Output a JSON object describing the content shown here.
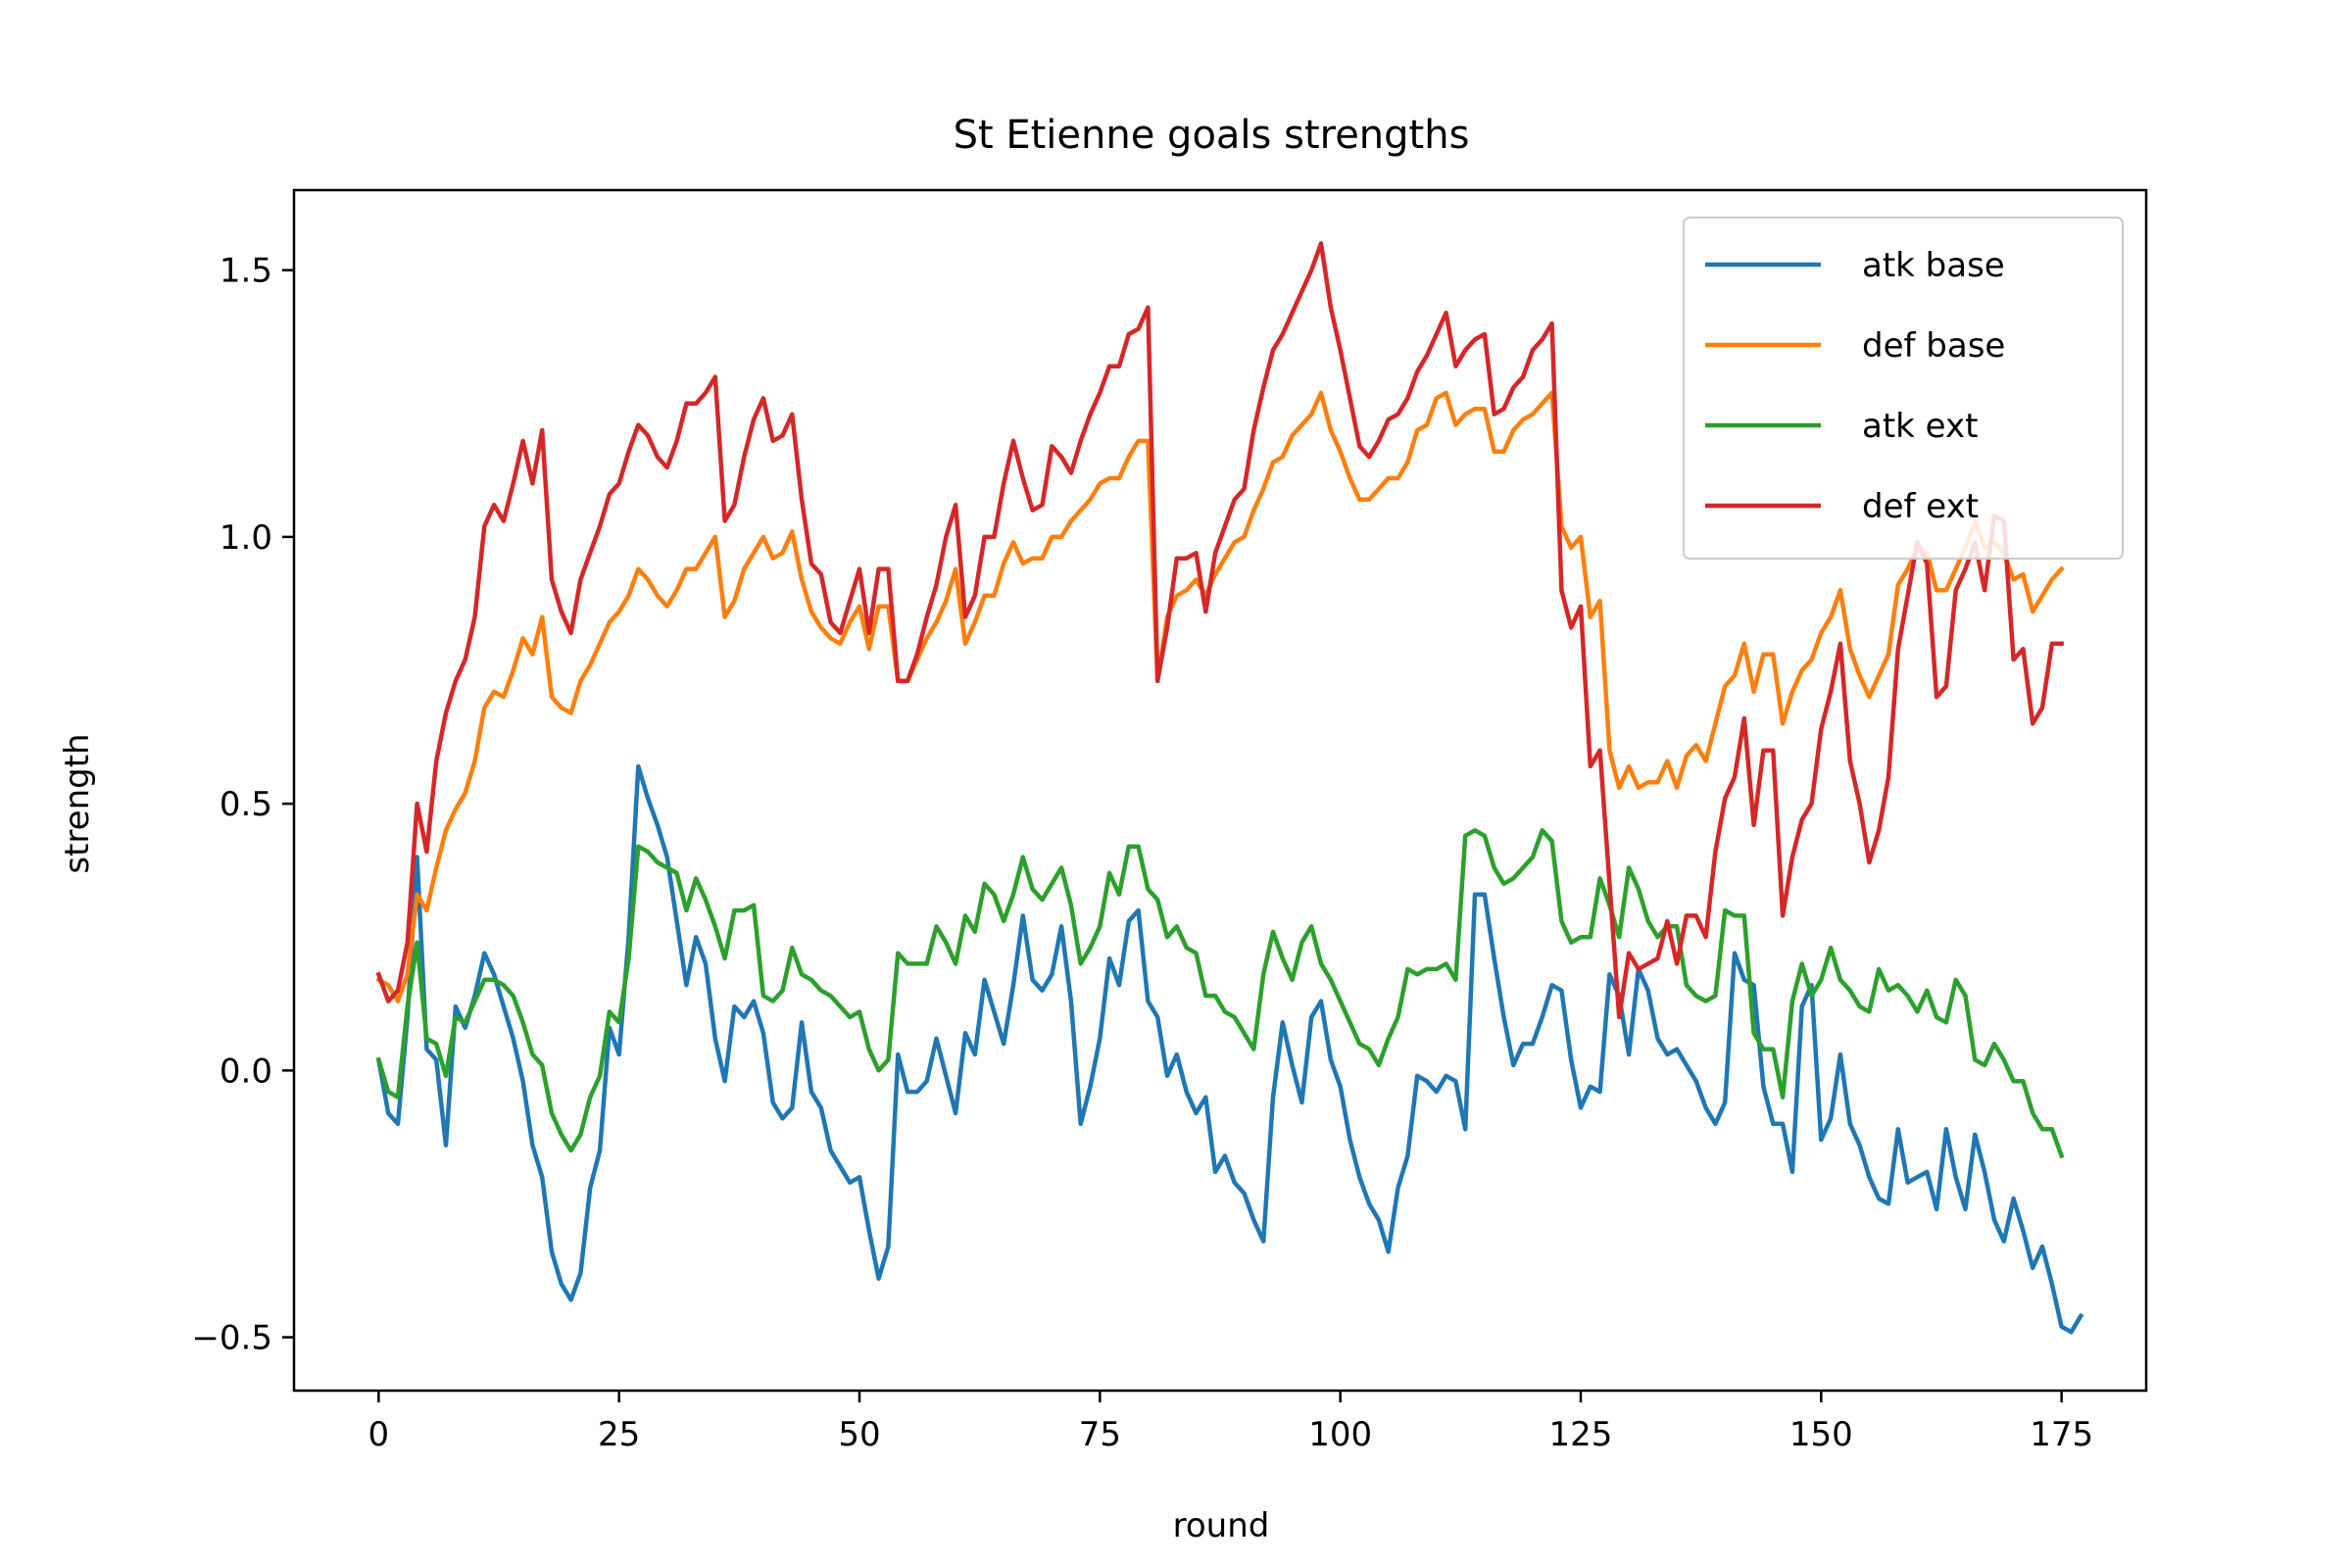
{
  "chart_data": {
    "type": "line",
    "title": "St Etienne goals strengths",
    "xlabel": "round",
    "ylabel": "strength",
    "xlim": [
      -8.8,
      183.8
    ],
    "ylim": [
      -0.6,
      1.65
    ],
    "xticks": [
      0,
      25,
      50,
      75,
      100,
      125,
      150,
      175
    ],
    "xtick_labels": [
      "0",
      "25",
      "50",
      "75",
      "100",
      "125",
      "150",
      "175"
    ],
    "yticks": [
      -0.5,
      0.0,
      0.5,
      1.0,
      1.5
    ],
    "ytick_labels": [
      "−0.5",
      "0.0",
      "0.5",
      "1.0",
      "1.5"
    ],
    "grid": false,
    "legend_position": "upper right",
    "x": {
      "start": 0,
      "end": 175,
      "step": 1
    },
    "series": [
      {
        "name": "atk base",
        "color": "#1f77b4",
        "values": [
          0.02,
          -0.08,
          -0.1,
          0.1,
          0.4,
          0.04,
          0.02,
          -0.14,
          0.12,
          0.08,
          0.14,
          0.22,
          0.18,
          0.12,
          0.06,
          -0.02,
          -0.14,
          -0.2,
          -0.34,
          -0.4,
          -0.43,
          -0.38,
          -0.22,
          -0.15,
          0.08,
          0.03,
          0.25,
          0.57,
          0.51,
          0.46,
          0.4,
          0.28,
          0.16,
          0.25,
          0.2,
          0.06,
          -0.02,
          0.12,
          0.1,
          0.13,
          0.07,
          -0.06,
          -0.09,
          -0.07,
          0.09,
          -0.04,
          -0.07,
          -0.15,
          -0.18,
          -0.21,
          -0.2,
          -0.3,
          -0.39,
          -0.33,
          0.03,
          -0.04,
          -0.04,
          -0.02,
          0.06,
          -0.01,
          -0.08,
          0.07,
          0.03,
          0.17,
          0.11,
          0.05,
          0.16,
          0.29,
          0.17,
          0.15,
          0.18,
          0.27,
          0.13,
          -0.1,
          -0.03,
          0.06,
          0.21,
          0.16,
          0.28,
          0.3,
          0.13,
          0.1,
          -0.01,
          0.03,
          -0.04,
          -0.08,
          -0.05,
          -0.19,
          -0.16,
          -0.21,
          -0.23,
          -0.28,
          -0.32,
          -0.05,
          0.09,
          0.01,
          -0.06,
          0.1,
          0.13,
          0.02,
          -0.03,
          -0.13,
          -0.2,
          -0.25,
          -0.28,
          -0.34,
          -0.22,
          -0.16,
          -0.01,
          -0.02,
          -0.04,
          -0.01,
          -0.02,
          -0.11,
          0.33,
          0.33,
          0.21,
          0.1,
          0.01,
          0.05,
          0.05,
          0.1,
          0.16,
          0.15,
          0.02,
          -0.07,
          -0.03,
          -0.04,
          0.18,
          0.14,
          0.03,
          0.19,
          0.15,
          0.06,
          0.03,
          0.04,
          0.01,
          -0.02,
          -0.07,
          -0.1,
          -0.06,
          0.22,
          0.17,
          0.16,
          -0.03,
          -0.1,
          -0.1,
          -0.19,
          0.12,
          0.16,
          -0.13,
          -0.09,
          0.03,
          -0.1,
          -0.14,
          -0.2,
          -0.24,
          -0.25,
          -0.11,
          -0.21,
          -0.2,
          -0.19,
          -0.26,
          -0.11,
          -0.2,
          -0.26,
          -0.12,
          -0.19,
          -0.28,
          -0.32,
          -0.24,
          -0.3,
          -0.37,
          -0.33,
          -0.4,
          -0.48,
          -0.49,
          -0.46
        ]
      },
      {
        "name": "def base",
        "color": "#ff7f0e",
        "values": [
          0.17,
          0.16,
          0.13,
          0.18,
          0.33,
          0.3,
          0.38,
          0.45,
          0.49,
          0.52,
          0.58,
          0.68,
          0.71,
          0.7,
          0.75,
          0.81,
          0.78,
          0.85,
          0.7,
          0.68,
          0.67,
          0.73,
          0.76,
          0.8,
          0.84,
          0.86,
          0.89,
          0.94,
          0.92,
          0.89,
          0.87,
          0.9,
          0.94,
          0.94,
          0.97,
          1.0,
          0.85,
          0.88,
          0.94,
          0.97,
          1.0,
          0.96,
          0.97,
          1.01,
          0.92,
          0.86,
          0.83,
          0.81,
          0.8,
          0.84,
          0.87,
          0.79,
          0.87,
          0.87,
          0.73,
          0.73,
          0.77,
          0.81,
          0.84,
          0.88,
          0.94,
          0.8,
          0.84,
          0.89,
          0.89,
          0.95,
          0.99,
          0.95,
          0.96,
          0.96,
          1.0,
          1.0,
          1.03,
          1.05,
          1.07,
          1.1,
          1.11,
          1.11,
          1.15,
          1.18,
          1.18,
          0.73,
          0.85,
          0.89,
          0.9,
          0.92,
          0.89,
          0.93,
          0.96,
          0.99,
          1.0,
          1.05,
          1.09,
          1.14,
          1.15,
          1.19,
          1.21,
          1.23,
          1.27,
          1.2,
          1.16,
          1.11,
          1.07,
          1.07,
          1.09,
          1.11,
          1.11,
          1.14,
          1.2,
          1.21,
          1.26,
          1.27,
          1.21,
          1.23,
          1.24,
          1.24,
          1.16,
          1.16,
          1.2,
          1.22,
          1.23,
          1.25,
          1.27,
          1.02,
          0.98,
          1.0,
          0.85,
          0.88,
          0.6,
          0.53,
          0.57,
          0.53,
          0.54,
          0.54,
          0.58,
          0.53,
          0.59,
          0.61,
          0.58,
          0.65,
          0.72,
          0.74,
          0.8,
          0.71,
          0.78,
          0.78,
          0.65,
          0.71,
          0.75,
          0.77,
          0.82,
          0.85,
          0.9,
          0.79,
          0.74,
          0.7,
          0.74,
          0.78,
          0.91,
          0.94,
          0.98,
          0.97,
          0.9,
          0.9,
          0.94,
          0.98,
          1.03,
          0.98,
          0.99,
          0.97,
          0.92,
          0.93,
          0.86,
          0.89,
          0.92,
          0.94
        ]
      },
      {
        "name": "atk ext",
        "color": "#2ca02c",
        "values": [
          0.02,
          -0.04,
          -0.05,
          0.12,
          0.24,
          0.06,
          0.05,
          -0.01,
          0.1,
          0.09,
          0.13,
          0.17,
          0.17,
          0.16,
          0.14,
          0.09,
          0.03,
          0.01,
          -0.08,
          -0.12,
          -0.15,
          -0.12,
          -0.05,
          -0.01,
          0.11,
          0.09,
          0.21,
          0.42,
          0.41,
          0.39,
          0.38,
          0.37,
          0.3,
          0.36,
          0.32,
          0.27,
          0.21,
          0.3,
          0.3,
          0.31,
          0.14,
          0.13,
          0.15,
          0.23,
          0.18,
          0.17,
          0.15,
          0.14,
          0.12,
          0.1,
          0.11,
          0.04,
          0.0,
          0.02,
          0.22,
          0.2,
          0.2,
          0.2,
          0.27,
          0.24,
          0.2,
          0.29,
          0.26,
          0.35,
          0.33,
          0.28,
          0.33,
          0.4,
          0.34,
          0.32,
          0.35,
          0.38,
          0.31,
          0.2,
          0.23,
          0.27,
          0.37,
          0.33,
          0.42,
          0.42,
          0.34,
          0.32,
          0.25,
          0.27,
          0.23,
          0.22,
          0.14,
          0.14,
          0.11,
          0.1,
          0.07,
          0.04,
          0.18,
          0.26,
          0.21,
          0.17,
          0.24,
          0.27,
          0.2,
          0.17,
          0.13,
          0.09,
          0.05,
          0.04,
          0.01,
          0.06,
          0.1,
          0.19,
          0.18,
          0.19,
          0.19,
          0.2,
          0.17,
          0.44,
          0.45,
          0.44,
          0.38,
          0.35,
          0.36,
          0.38,
          0.4,
          0.45,
          0.43,
          0.28,
          0.24,
          0.25,
          0.25,
          0.36,
          0.31,
          0.25,
          0.38,
          0.34,
          0.28,
          0.25,
          0.27,
          0.27,
          0.16,
          0.14,
          0.13,
          0.14,
          0.3,
          0.29,
          0.29,
          0.07,
          0.04,
          0.04,
          -0.05,
          0.13,
          0.2,
          0.14,
          0.17,
          0.23,
          0.17,
          0.15,
          0.12,
          0.11,
          0.19,
          0.15,
          0.16,
          0.14,
          0.11,
          0.15,
          0.1,
          0.09,
          0.17,
          0.14,
          0.02,
          0.01,
          0.05,
          0.02,
          -0.02,
          -0.02,
          -0.08,
          -0.11,
          -0.11,
          -0.16
        ]
      },
      {
        "name": "def ext",
        "color": "#d62728",
        "values": [
          0.18,
          0.13,
          0.15,
          0.24,
          0.5,
          0.41,
          0.58,
          0.67,
          0.73,
          0.77,
          0.85,
          1.02,
          1.06,
          1.03,
          1.1,
          1.18,
          1.1,
          1.2,
          0.92,
          0.86,
          0.82,
          0.92,
          0.97,
          1.02,
          1.08,
          1.1,
          1.16,
          1.21,
          1.19,
          1.15,
          1.13,
          1.18,
          1.25,
          1.25,
          1.27,
          1.3,
          1.03,
          1.06,
          1.15,
          1.22,
          1.26,
          1.18,
          1.19,
          1.23,
          1.07,
          0.95,
          0.93,
          0.84,
          0.82,
          0.88,
          0.94,
          0.82,
          0.94,
          0.94,
          0.73,
          0.73,
          0.78,
          0.85,
          0.91,
          1.0,
          1.06,
          0.85,
          0.89,
          1.0,
          1.0,
          1.1,
          1.18,
          1.11,
          1.05,
          1.06,
          1.17,
          1.15,
          1.12,
          1.18,
          1.23,
          1.27,
          1.32,
          1.32,
          1.38,
          1.39,
          1.43,
          0.73,
          0.83,
          0.96,
          0.96,
          0.97,
          0.86,
          0.97,
          1.02,
          1.07,
          1.09,
          1.2,
          1.28,
          1.35,
          1.38,
          1.42,
          1.46,
          1.5,
          1.55,
          1.43,
          1.35,
          1.26,
          1.17,
          1.15,
          1.18,
          1.22,
          1.23,
          1.26,
          1.31,
          1.34,
          1.38,
          1.42,
          1.32,
          1.35,
          1.37,
          1.38,
          1.23,
          1.24,
          1.28,
          1.3,
          1.35,
          1.37,
          1.4,
          0.9,
          0.83,
          0.87,
          0.57,
          0.6,
          0.35,
          0.1,
          0.22,
          0.19,
          0.2,
          0.21,
          0.28,
          0.2,
          0.29,
          0.29,
          0.25,
          0.41,
          0.51,
          0.55,
          0.66,
          0.46,
          0.6,
          0.6,
          0.29,
          0.4,
          0.47,
          0.5,
          0.64,
          0.71,
          0.8,
          0.58,
          0.5,
          0.39,
          0.45,
          0.55,
          0.79,
          0.89,
          0.99,
          0.95,
          0.7,
          0.72,
          0.9,
          0.94,
          0.99,
          0.9,
          1.04,
          1.03,
          0.77,
          0.79,
          0.65,
          0.68,
          0.8,
          0.8
        ]
      }
    ]
  }
}
